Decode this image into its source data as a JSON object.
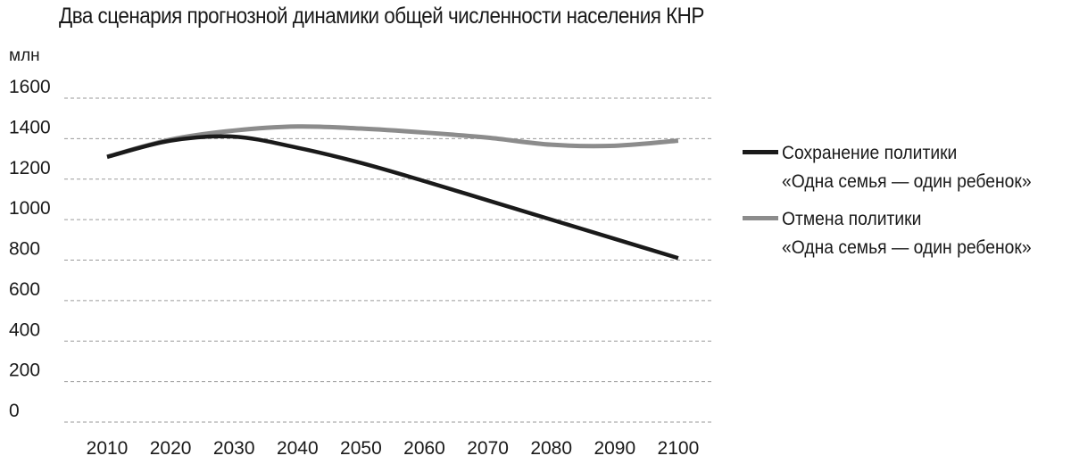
{
  "chart_data": {
    "type": "line",
    "title": "Два сценария прогнозной динамики общей численности населения КНР",
    "ylabel": "млн",
    "xlabel": "",
    "ylim": [
      0,
      1600
    ],
    "yticks": [
      0,
      200,
      400,
      600,
      800,
      1000,
      1200,
      1400,
      1600
    ],
    "x": [
      2010,
      2020,
      2030,
      2040,
      2050,
      2060,
      2070,
      2080,
      2090,
      2100
    ],
    "grid": "horizontal-dashed",
    "legend_position": "right",
    "series": [
      {
        "name": "Сохранение политики «Одна семья — один ребенок»",
        "name_lines": [
          "Сохранение политики",
          "«Одна семья — один ребенок»"
        ],
        "color": "#1a1a1a",
        "values": [
          1310,
          1390,
          1410,
          1355,
          1280,
          1190,
          1095,
          1000,
          905,
          810
        ]
      },
      {
        "name": "Отмена политики «Одна семья — один ребенок»",
        "name_lines": [
          "Отмена политики",
          "«Одна семья — один ребенок»"
        ],
        "color": "#8c8c8c",
        "values": [
          1310,
          1395,
          1440,
          1460,
          1450,
          1430,
          1405,
          1370,
          1365,
          1390
        ]
      }
    ]
  }
}
